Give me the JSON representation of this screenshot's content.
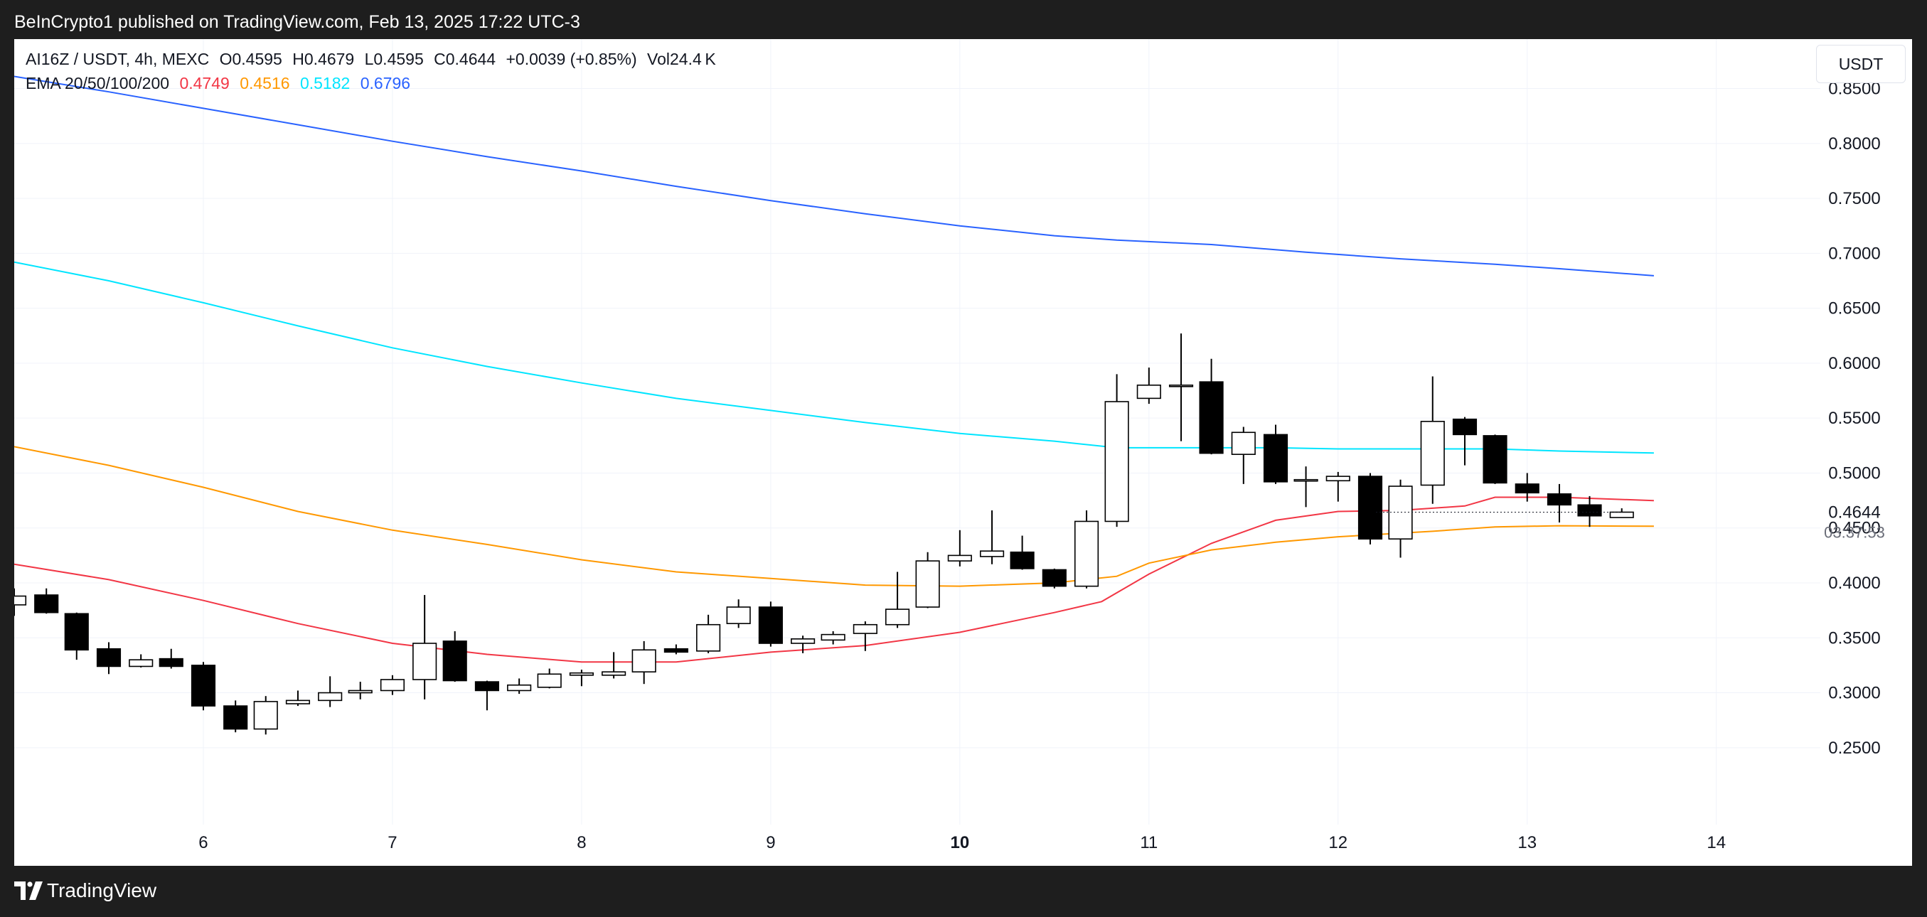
{
  "header": {
    "publisher_text": "BeInCrypto1 published on TradingView.com, Feb 13, 2025 17:22 UTC-3"
  },
  "legend": {
    "symbol": "AI16Z / USDT, 4h, MEXC",
    "open": "O0.4595",
    "high": "H0.4679",
    "low": "L0.4595",
    "close": "C0.4644",
    "change": "+0.0039 (+0.85%)",
    "volume": "Vol24.4 K",
    "ema_label": "EMA 20/50/100/200",
    "ema20": "0.4749",
    "ema50": "0.4516",
    "ema100": "0.5182",
    "ema200": "0.6796"
  },
  "currency_button": "USDT",
  "footer": {
    "brand": "TradingView"
  },
  "colors": {
    "ema20": "#f23645",
    "ema50": "#ff9800",
    "ema100": "#00e5ff",
    "ema200": "#2962ff",
    "up_candle": "#ffffff",
    "down_candle": "#000000"
  },
  "chart_data": {
    "type": "candlestick",
    "ylim": [
      0.18,
      0.895
    ],
    "xlim": [
      5.0,
      14.55
    ],
    "y_ticks": [
      "0.8500",
      "0.8000",
      "0.7500",
      "0.7000",
      "0.6500",
      "0.6000",
      "0.5500",
      "0.5000",
      "0.4500",
      "0.4000",
      "0.3500",
      "0.3000",
      "0.2500"
    ],
    "x_ticks": [
      {
        "label": "6",
        "value": 6.0,
        "bold": false
      },
      {
        "label": "7",
        "value": 7.0,
        "bold": false
      },
      {
        "label": "8",
        "value": 8.0,
        "bold": false
      },
      {
        "label": "9",
        "value": 9.0,
        "bold": false
      },
      {
        "label": "10",
        "value": 10.0,
        "bold": true
      },
      {
        "label": "11",
        "value": 11.0,
        "bold": false
      },
      {
        "label": "12",
        "value": 12.0,
        "bold": false
      },
      {
        "label": "13",
        "value": 13.0,
        "bold": false
      },
      {
        "label": "14",
        "value": 14.0,
        "bold": false
      }
    ],
    "last_price": "0.4644",
    "countdown": "03:37:53",
    "candles": [
      {
        "t": 5.0,
        "o": 0.38,
        "h": 0.395,
        "l": 0.37,
        "c": 0.388
      },
      {
        "t": 5.17,
        "o": 0.389,
        "h": 0.395,
        "l": 0.372,
        "c": 0.373
      },
      {
        "t": 5.33,
        "o": 0.372,
        "h": 0.373,
        "l": 0.33,
        "c": 0.339
      },
      {
        "t": 5.5,
        "o": 0.34,
        "h": 0.346,
        "l": 0.317,
        "c": 0.324
      },
      {
        "t": 5.67,
        "o": 0.324,
        "h": 0.335,
        "l": 0.323,
        "c": 0.33
      },
      {
        "t": 5.83,
        "o": 0.331,
        "h": 0.34,
        "l": 0.322,
        "c": 0.324
      },
      {
        "t": 6.0,
        "o": 0.325,
        "h": 0.328,
        "l": 0.284,
        "c": 0.288
      },
      {
        "t": 6.17,
        "o": 0.288,
        "h": 0.293,
        "l": 0.264,
        "c": 0.267
      },
      {
        "t": 6.33,
        "o": 0.267,
        "h": 0.297,
        "l": 0.262,
        "c": 0.292
      },
      {
        "t": 6.5,
        "o": 0.29,
        "h": 0.302,
        "l": 0.288,
        "c": 0.293
      },
      {
        "t": 6.67,
        "o": 0.293,
        "h": 0.315,
        "l": 0.287,
        "c": 0.3
      },
      {
        "t": 6.83,
        "o": 0.3,
        "h": 0.31,
        "l": 0.294,
        "c": 0.302
      },
      {
        "t": 7.0,
        "o": 0.302,
        "h": 0.316,
        "l": 0.298,
        "c": 0.312
      },
      {
        "t": 7.17,
        "o": 0.312,
        "h": 0.389,
        "l": 0.294,
        "c": 0.345
      },
      {
        "t": 7.33,
        "o": 0.347,
        "h": 0.356,
        "l": 0.31,
        "c": 0.311
      },
      {
        "t": 7.5,
        "o": 0.31,
        "h": 0.311,
        "l": 0.284,
        "c": 0.302
      },
      {
        "t": 7.67,
        "o": 0.302,
        "h": 0.313,
        "l": 0.299,
        "c": 0.307
      },
      {
        "t": 7.83,
        "o": 0.305,
        "h": 0.322,
        "l": 0.304,
        "c": 0.317
      },
      {
        "t": 8.0,
        "o": 0.316,
        "h": 0.321,
        "l": 0.306,
        "c": 0.318
      },
      {
        "t": 8.17,
        "o": 0.316,
        "h": 0.337,
        "l": 0.313,
        "c": 0.319
      },
      {
        "t": 8.33,
        "o": 0.319,
        "h": 0.347,
        "l": 0.308,
        "c": 0.339
      },
      {
        "t": 8.5,
        "o": 0.34,
        "h": 0.344,
        "l": 0.335,
        "c": 0.337
      },
      {
        "t": 8.67,
        "o": 0.338,
        "h": 0.371,
        "l": 0.336,
        "c": 0.362
      },
      {
        "t": 8.83,
        "o": 0.363,
        "h": 0.385,
        "l": 0.359,
        "c": 0.378
      },
      {
        "t": 9.0,
        "o": 0.378,
        "h": 0.383,
        "l": 0.342,
        "c": 0.345
      },
      {
        "t": 9.17,
        "o": 0.345,
        "h": 0.352,
        "l": 0.336,
        "c": 0.349
      },
      {
        "t": 9.33,
        "o": 0.348,
        "h": 0.356,
        "l": 0.344,
        "c": 0.353
      },
      {
        "t": 9.5,
        "o": 0.354,
        "h": 0.365,
        "l": 0.338,
        "c": 0.362
      },
      {
        "t": 9.67,
        "o": 0.362,
        "h": 0.41,
        "l": 0.359,
        "c": 0.376
      },
      {
        "t": 9.83,
        "o": 0.378,
        "h": 0.428,
        "l": 0.377,
        "c": 0.42
      },
      {
        "t": 10.0,
        "o": 0.42,
        "h": 0.448,
        "l": 0.415,
        "c": 0.425
      },
      {
        "t": 10.17,
        "o": 0.424,
        "h": 0.466,
        "l": 0.417,
        "c": 0.429
      },
      {
        "t": 10.33,
        "o": 0.428,
        "h": 0.443,
        "l": 0.412,
        "c": 0.413
      },
      {
        "t": 10.5,
        "o": 0.412,
        "h": 0.413,
        "l": 0.395,
        "c": 0.397
      },
      {
        "t": 10.67,
        "o": 0.397,
        "h": 0.466,
        "l": 0.395,
        "c": 0.456
      },
      {
        "t": 10.83,
        "o": 0.456,
        "h": 0.59,
        "l": 0.451,
        "c": 0.565
      },
      {
        "t": 11.0,
        "o": 0.568,
        "h": 0.596,
        "l": 0.563,
        "c": 0.58
      },
      {
        "t": 11.17,
        "o": 0.58,
        "h": 0.627,
        "l": 0.529,
        "c": 0.58
      },
      {
        "t": 11.33,
        "o": 0.583,
        "h": 0.604,
        "l": 0.517,
        "c": 0.518
      },
      {
        "t": 11.5,
        "o": 0.517,
        "h": 0.542,
        "l": 0.49,
        "c": 0.537
      },
      {
        "t": 11.67,
        "o": 0.535,
        "h": 0.544,
        "l": 0.49,
        "c": 0.492
      },
      {
        "t": 11.83,
        "o": 0.493,
        "h": 0.506,
        "l": 0.469,
        "c": 0.494
      },
      {
        "t": 12.0,
        "o": 0.493,
        "h": 0.501,
        "l": 0.474,
        "c": 0.497
      },
      {
        "t": 12.17,
        "o": 0.497,
        "h": 0.5,
        "l": 0.435,
        "c": 0.44
      },
      {
        "t": 12.33,
        "o": 0.44,
        "h": 0.494,
        "l": 0.423,
        "c": 0.488
      },
      {
        "t": 12.5,
        "o": 0.489,
        "h": 0.588,
        "l": 0.472,
        "c": 0.547
      },
      {
        "t": 12.67,
        "o": 0.549,
        "h": 0.551,
        "l": 0.507,
        "c": 0.535
      },
      {
        "t": 12.83,
        "o": 0.534,
        "h": 0.535,
        "l": 0.49,
        "c": 0.491
      },
      {
        "t": 13.0,
        "o": 0.49,
        "h": 0.5,
        "l": 0.474,
        "c": 0.482
      },
      {
        "t": 13.17,
        "o": 0.481,
        "h": 0.49,
        "l": 0.455,
        "c": 0.471
      },
      {
        "t": 13.33,
        "o": 0.471,
        "h": 0.479,
        "l": 0.451,
        "c": 0.461
      },
      {
        "t": 13.5,
        "o": 0.4595,
        "h": 0.4679,
        "l": 0.4595,
        "c": 0.4644
      }
    ],
    "series": [
      {
        "name": "EMA 20",
        "color": "#f23645",
        "points": [
          [
            5.0,
            0.417
          ],
          [
            5.5,
            0.403
          ],
          [
            6.0,
            0.384
          ],
          [
            6.5,
            0.363
          ],
          [
            7.0,
            0.345
          ],
          [
            7.25,
            0.34
          ],
          [
            7.5,
            0.335
          ],
          [
            8.0,
            0.328
          ],
          [
            8.5,
            0.328
          ],
          [
            9.0,
            0.337
          ],
          [
            9.5,
            0.343
          ],
          [
            10.0,
            0.355
          ],
          [
            10.5,
            0.373
          ],
          [
            10.75,
            0.383
          ],
          [
            11.0,
            0.408
          ],
          [
            11.33,
            0.436
          ],
          [
            11.67,
            0.457
          ],
          [
            12.0,
            0.465
          ],
          [
            12.33,
            0.466
          ],
          [
            12.67,
            0.47
          ],
          [
            12.83,
            0.478
          ],
          [
            13.17,
            0.478
          ],
          [
            13.67,
            0.4749
          ]
        ]
      },
      {
        "name": "EMA 50",
        "color": "#ff9800",
        "points": [
          [
            5.0,
            0.524
          ],
          [
            5.5,
            0.507
          ],
          [
            6.0,
            0.487
          ],
          [
            6.5,
            0.465
          ],
          [
            7.0,
            0.448
          ],
          [
            7.5,
            0.435
          ],
          [
            8.0,
            0.421
          ],
          [
            8.5,
            0.41
          ],
          [
            9.0,
            0.404
          ],
          [
            9.5,
            0.398
          ],
          [
            10.0,
            0.397
          ],
          [
            10.5,
            0.4
          ],
          [
            10.83,
            0.406
          ],
          [
            11.0,
            0.418
          ],
          [
            11.33,
            0.43
          ],
          [
            11.67,
            0.437
          ],
          [
            12.0,
            0.442
          ],
          [
            12.5,
            0.447
          ],
          [
            12.83,
            0.451
          ],
          [
            13.17,
            0.452
          ],
          [
            13.67,
            0.4516
          ]
        ]
      },
      {
        "name": "EMA 100",
        "color": "#00e5ff",
        "points": [
          [
            5.0,
            0.692
          ],
          [
            5.5,
            0.675
          ],
          [
            6.0,
            0.655
          ],
          [
            6.5,
            0.634
          ],
          [
            7.0,
            0.614
          ],
          [
            7.5,
            0.597
          ],
          [
            8.0,
            0.582
          ],
          [
            8.5,
            0.568
          ],
          [
            9.0,
            0.557
          ],
          [
            9.5,
            0.546
          ],
          [
            10.0,
            0.536
          ],
          [
            10.5,
            0.529
          ],
          [
            10.83,
            0.523
          ],
          [
            11.17,
            0.523
          ],
          [
            11.67,
            0.523
          ],
          [
            12.0,
            0.522
          ],
          [
            12.5,
            0.522
          ],
          [
            12.83,
            0.522
          ],
          [
            13.17,
            0.52
          ],
          [
            13.67,
            0.5182
          ]
        ]
      },
      {
        "name": "EMA 200",
        "color": "#2962ff",
        "points": [
          [
            5.0,
            0.861
          ],
          [
            5.5,
            0.847
          ],
          [
            6.0,
            0.832
          ],
          [
            6.5,
            0.817
          ],
          [
            7.0,
            0.802
          ],
          [
            7.5,
            0.788
          ],
          [
            8.0,
            0.775
          ],
          [
            8.5,
            0.761
          ],
          [
            9.0,
            0.748
          ],
          [
            9.5,
            0.736
          ],
          [
            10.0,
            0.725
          ],
          [
            10.5,
            0.716
          ],
          [
            10.83,
            0.712
          ],
          [
            11.33,
            0.708
          ],
          [
            11.83,
            0.701
          ],
          [
            12.33,
            0.695
          ],
          [
            12.83,
            0.69
          ],
          [
            13.17,
            0.686
          ],
          [
            13.67,
            0.6796
          ]
        ]
      }
    ]
  }
}
